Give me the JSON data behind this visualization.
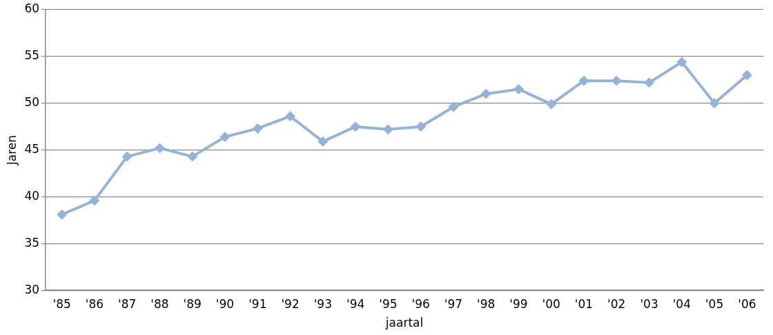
{
  "chart_data": {
    "type": "line",
    "xlabel": "jaartal",
    "ylabel": "Jaren",
    "categories": [
      "'85",
      "'86",
      "'87",
      "'88",
      "'89",
      "'90",
      "'91",
      "'92",
      "'93",
      "'94",
      "'95",
      "'96",
      "'97",
      "'98",
      "'99",
      "'00",
      "'01",
      "'02",
      "'03",
      "'04",
      "'05",
      "'06"
    ],
    "series": [
      {
        "color": "#95b3d7",
        "values": [
          38.1,
          39.6,
          44.3,
          45.2,
          44.3,
          46.4,
          47.3,
          48.6,
          45.9,
          47.5,
          47.2,
          47.5,
          49.6,
          51.0,
          51.5,
          49.9,
          52.4,
          52.4,
          52.2,
          54.4,
          50.0,
          53.0
        ]
      }
    ],
    "ylim": [
      30,
      60
    ],
    "yticks": [
      30,
      35,
      40,
      45,
      50,
      55,
      60
    ],
    "grid": "y",
    "legend": false,
    "marker": "diamond",
    "line_style": "solid"
  }
}
